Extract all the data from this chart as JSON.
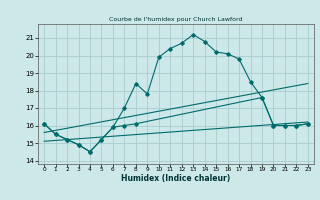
{
  "title": "Courbe de l'humidex pour Church Lawford",
  "xlabel": "Humidex (Indice chaleur)",
  "bg_color": "#cce8e8",
  "grid_color": "#aacccc",
  "line_color": "#006b6b",
  "xlim": [
    -0.5,
    23.5
  ],
  "ylim": [
    13.8,
    21.8
  ],
  "xticks": [
    0,
    1,
    2,
    3,
    4,
    5,
    6,
    7,
    8,
    9,
    10,
    11,
    12,
    13,
    14,
    15,
    16,
    17,
    18,
    19,
    20,
    21,
    22,
    23
  ],
  "yticks": [
    14,
    15,
    16,
    17,
    18,
    19,
    20,
    21
  ],
  "line1_x": [
    0,
    1,
    2,
    3,
    4,
    5,
    6,
    7,
    8,
    9,
    10,
    11,
    12,
    13,
    14,
    15,
    16,
    17,
    18,
    19,
    20,
    21,
    22,
    23
  ],
  "line1_y": [
    16.1,
    15.5,
    15.2,
    14.9,
    14.5,
    15.2,
    15.9,
    17.0,
    18.4,
    17.8,
    19.9,
    20.4,
    20.7,
    21.2,
    20.8,
    20.2,
    20.1,
    19.8,
    18.5,
    17.6,
    16.0,
    16.0,
    16.0,
    16.1
  ],
  "line2_x": [
    0,
    1,
    2,
    3,
    4,
    5,
    6,
    7,
    8,
    19,
    20,
    21,
    22,
    23
  ],
  "line2_y": [
    16.1,
    15.5,
    15.2,
    14.9,
    14.5,
    15.2,
    15.9,
    16.0,
    16.1,
    17.6,
    16.0,
    16.0,
    16.0,
    16.1
  ],
  "line3_x": [
    0,
    23
  ],
  "line3_y": [
    15.6,
    18.4
  ],
  "line4_x": [
    0,
    23
  ],
  "line4_y": [
    15.1,
    16.2
  ]
}
